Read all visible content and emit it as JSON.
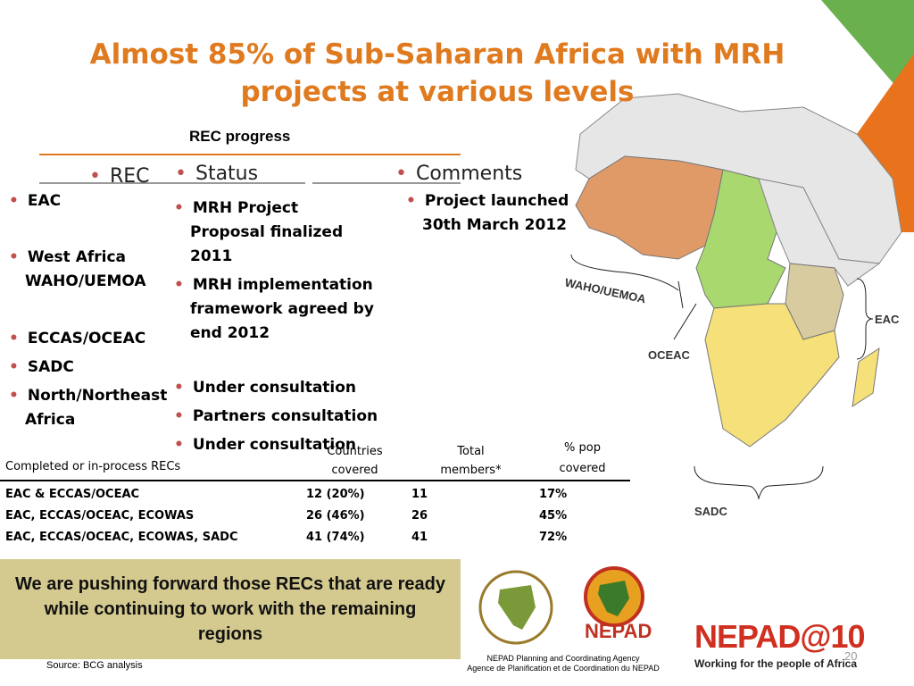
{
  "header": {
    "title": "Almost 85% of Sub-Saharan Africa with MRH projects at various levels",
    "subtitle": "REC progress"
  },
  "columns": [
    "REC",
    "Status",
    "Comments"
  ],
  "recs": [
    "EAC",
    "West Africa WAHO/UEMOA",
    "ECCAS/OCEAC",
    "SADC",
    "North/Northeast Africa"
  ],
  "statuses": [
    "MRH Project Proposal finalized 2011",
    "MRH implementation framework agreed by end 2012",
    "Under consultation",
    "Partners consultation",
    "Under consultation"
  ],
  "comments": [
    "Project launched 30th March 2012"
  ],
  "table": {
    "headers": [
      "Completed or in-process RECs",
      "Countries covered",
      "Total members*",
      "% pop covered"
    ],
    "rows": [
      [
        "EAC & ECCAS/OCEAC",
        "12 (20%)",
        "11",
        "17%"
      ],
      [
        "EAC, ECCAS/OCEAC, ECOWAS",
        "26 (46%)",
        "26",
        "45%"
      ],
      [
        "EAC, ECCAS/OCEAC, ECOWAS, SADC",
        "41 (74%)",
        "41",
        "72%"
      ]
    ]
  },
  "map_labels": [
    "WAHO/UEMOA",
    "OCEAC",
    "EAC",
    "SADC"
  ],
  "banner": "We are pushing forward those RECs that are ready while continuing to work with the remaining regions",
  "source": "Source: BCG analysis",
  "logos": {
    "nepad": "NEPAD",
    "agency_en": "NEPAD Planning and Coordinating Agency",
    "agency_fr": "Agence de Planification et de Coordination du NEPAD",
    "nepad10": "NEPAD@10",
    "tagline": "Working for the people of Africa"
  },
  "page_number": "20"
}
